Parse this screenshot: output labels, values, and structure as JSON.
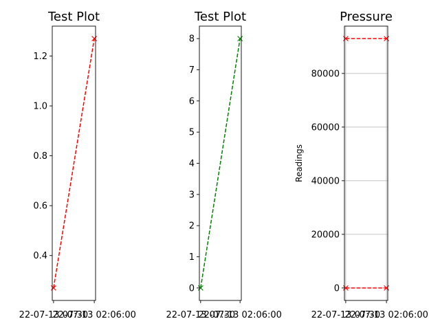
{
  "chart_data": [
    {
      "type": "line",
      "title": "Test Plot",
      "xlabel": "",
      "ylabel": "",
      "grid": false,
      "x_ticks": [
        "22-07-13 07:30",
        "22-07-13 02:06:00"
      ],
      "y_ticks": [
        0.4,
        0.6,
        0.8,
        1.0,
        1.2
      ],
      "y_tick_labels": [
        "0.4",
        "0.6",
        "0.8",
        "1.0",
        "1.2"
      ],
      "xlim": [
        0,
        1
      ],
      "ylim": [
        0.22,
        1.32
      ],
      "series": [
        {
          "color": "#ff0000",
          "linestyle": "dashed",
          "marker": "x",
          "x": [
            0.03,
            0.97
          ],
          "y": [
            0.27,
            1.27
          ]
        }
      ]
    },
    {
      "type": "line",
      "title": "Test Plot",
      "xlabel": "",
      "ylabel": "",
      "grid": false,
      "x_ticks": [
        "22-07-13 07:30",
        "22-07-13 02:06:00"
      ],
      "y_ticks": [
        0,
        1,
        2,
        3,
        4,
        5,
        6,
        7,
        8
      ],
      "y_tick_labels": [
        "0",
        "1",
        "2",
        "3",
        "4",
        "5",
        "6",
        "7",
        "8"
      ],
      "xlim": [
        0,
        1
      ],
      "ylim": [
        -0.4,
        8.4
      ],
      "series": [
        {
          "color": "#008000",
          "linestyle": "dashed",
          "marker": "x",
          "x": [
            0.03,
            0.97
          ],
          "y": [
            0,
            8
          ]
        }
      ]
    },
    {
      "type": "line",
      "title": "Pressure",
      "xlabel": "",
      "ylabel": "Readings",
      "grid": true,
      "x_ticks": [
        "22-07-13 07:30",
        "22-07-13 02:06:00"
      ],
      "y_ticks": [
        0,
        20000,
        40000,
        60000,
        80000
      ],
      "y_tick_labels": [
        "0",
        "20000",
        "40000",
        "60000",
        "80000"
      ],
      "xlim": [
        0,
        1
      ],
      "ylim": [
        -4650,
        97650
      ],
      "series": [
        {
          "color": "#ff0000",
          "linestyle": "dashed",
          "marker": "x",
          "x": [
            0.03,
            0.97
          ],
          "y": [
            93000,
            93000
          ]
        },
        {
          "color": "#ff0000",
          "linestyle": "dashed",
          "marker": "x",
          "x": [
            0.03,
            0.97
          ],
          "y": [
            0,
            0
          ]
        }
      ]
    }
  ]
}
